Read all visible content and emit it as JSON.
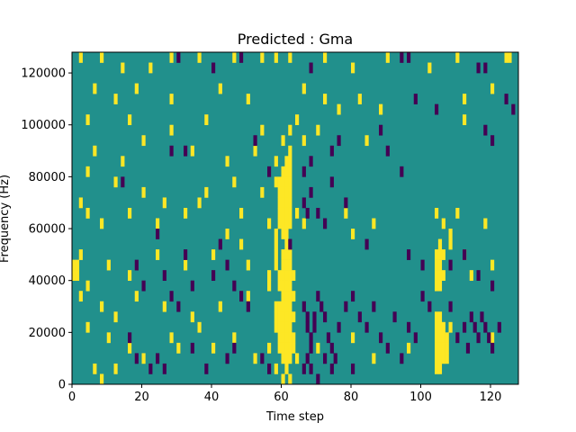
{
  "chart_data": {
    "type": "heatmap",
    "title": "Predicted : Gma",
    "xlabel": "Time step",
    "ylabel": "Frequency (Hz)",
    "xlim": [
      0,
      128
    ],
    "ylim": [
      0,
      128000
    ],
    "xticks": [
      0,
      20,
      40,
      60,
      80,
      100,
      120
    ],
    "yticks": [
      0,
      20000,
      40000,
      60000,
      80000,
      100000,
      120000
    ],
    "xtick_labels": [
      "0",
      "20",
      "40",
      "60",
      "80",
      "100",
      "120"
    ],
    "ytick_labels": [
      "0",
      "20000",
      "40000",
      "60000",
      "80000",
      "100000",
      "120000"
    ],
    "grid": false,
    "colormap": "viridis",
    "value_levels": {
      "low": "#440154",
      "mid": "#21908c",
      "high": "#fde725"
    },
    "background_level": "mid",
    "cell_size": {
      "time_step": 1,
      "frequency_hz": 4000
    },
    "high_cells": [
      [
        2,
        124000
      ],
      [
        8,
        124000
      ],
      [
        14,
        120000
      ],
      [
        22,
        120000
      ],
      [
        28,
        124000
      ],
      [
        36,
        124000
      ],
      [
        46,
        124000
      ],
      [
        54,
        124000
      ],
      [
        58,
        124000
      ],
      [
        62,
        124000
      ],
      [
        72,
        124000
      ],
      [
        80,
        120000
      ],
      [
        90,
        124000
      ],
      [
        102,
        120000
      ],
      [
        110,
        124000
      ],
      [
        124,
        124000
      ],
      [
        125,
        124000
      ],
      [
        6,
        112000
      ],
      [
        12,
        108000
      ],
      [
        18,
        112000
      ],
      [
        28,
        108000
      ],
      [
        42,
        112000
      ],
      [
        50,
        108000
      ],
      [
        66,
        112000
      ],
      [
        72,
        108000
      ],
      [
        76,
        104000
      ],
      [
        82,
        108000
      ],
      [
        88,
        104000
      ],
      [
        112,
        108000
      ],
      [
        120,
        112000
      ],
      [
        4,
        100000
      ],
      [
        16,
        100000
      ],
      [
        28,
        96000
      ],
      [
        38,
        100000
      ],
      [
        54,
        96000
      ],
      [
        60,
        92000
      ],
      [
        62,
        96000
      ],
      [
        64,
        100000
      ],
      [
        70,
        96000
      ],
      [
        84,
        92000
      ],
      [
        112,
        100000
      ],
      [
        6,
        88000
      ],
      [
        14,
        84000
      ],
      [
        20,
        92000
      ],
      [
        34,
        88000
      ],
      [
        44,
        84000
      ],
      [
        52,
        88000
      ],
      [
        58,
        84000
      ],
      [
        62,
        88000
      ],
      [
        66,
        92000
      ],
      [
        4,
        80000
      ],
      [
        12,
        76000
      ],
      [
        20,
        72000
      ],
      [
        26,
        68000
      ],
      [
        38,
        72000
      ],
      [
        46,
        76000
      ],
      [
        54,
        72000
      ],
      [
        58,
        76000
      ],
      [
        59,
        76000
      ],
      [
        59,
        72000
      ],
      [
        59,
        68000
      ],
      [
        59,
        64000
      ],
      [
        59,
        60000
      ],
      [
        60,
        80000
      ],
      [
        60,
        76000
      ],
      [
        60,
        72000
      ],
      [
        60,
        68000
      ],
      [
        60,
        64000
      ],
      [
        60,
        60000
      ],
      [
        60,
        56000
      ],
      [
        61,
        84000
      ],
      [
        61,
        80000
      ],
      [
        61,
        76000
      ],
      [
        61,
        72000
      ],
      [
        61,
        68000
      ],
      [
        61,
        64000
      ],
      [
        61,
        60000
      ],
      [
        61,
        56000
      ],
      [
        62,
        84000
      ],
      [
        62,
        80000
      ],
      [
        62,
        76000
      ],
      [
        62,
        72000
      ],
      [
        62,
        68000
      ],
      [
        62,
        64000
      ],
      [
        62,
        60000
      ],
      [
        2,
        68000
      ],
      [
        4,
        64000
      ],
      [
        8,
        60000
      ],
      [
        16,
        64000
      ],
      [
        24,
        60000
      ],
      [
        32,
        64000
      ],
      [
        36,
        68000
      ],
      [
        44,
        56000
      ],
      [
        48,
        64000
      ],
      [
        56,
        60000
      ],
      [
        58,
        56000
      ],
      [
        58,
        52000
      ],
      [
        58,
        48000
      ],
      [
        64,
        64000
      ],
      [
        66,
        60000
      ],
      [
        78,
        64000
      ],
      [
        80,
        56000
      ],
      [
        86,
        60000
      ],
      [
        104,
        64000
      ],
      [
        106,
        60000
      ],
      [
        108,
        56000
      ],
      [
        110,
        64000
      ],
      [
        118,
        60000
      ],
      [
        0,
        44000
      ],
      [
        1,
        44000
      ],
      [
        0,
        40000
      ],
      [
        1,
        40000
      ],
      [
        2,
        48000
      ],
      [
        4,
        36000
      ],
      [
        10,
        44000
      ],
      [
        16,
        40000
      ],
      [
        24,
        48000
      ],
      [
        32,
        44000
      ],
      [
        40,
        48000
      ],
      [
        48,
        52000
      ],
      [
        50,
        44000
      ],
      [
        56,
        40000
      ],
      [
        58,
        44000
      ],
      [
        59,
        40000
      ],
      [
        59,
        36000
      ],
      [
        60,
        48000
      ],
      [
        60,
        44000
      ],
      [
        60,
        40000
      ],
      [
        60,
        36000
      ],
      [
        60,
        32000
      ],
      [
        61,
        52000
      ],
      [
        61,
        48000
      ],
      [
        61,
        44000
      ],
      [
        61,
        40000
      ],
      [
        61,
        36000
      ],
      [
        61,
        32000
      ],
      [
        61,
        28000
      ],
      [
        62,
        48000
      ],
      [
        62,
        44000
      ],
      [
        62,
        40000
      ],
      [
        62,
        36000
      ],
      [
        62,
        32000
      ],
      [
        62,
        28000
      ],
      [
        62,
        24000
      ],
      [
        63,
        40000
      ],
      [
        63,
        32000
      ],
      [
        63,
        24000
      ],
      [
        104,
        48000
      ],
      [
        104,
        44000
      ],
      [
        104,
        40000
      ],
      [
        104,
        36000
      ],
      [
        105,
        52000
      ],
      [
        105,
        48000
      ],
      [
        105,
        44000
      ],
      [
        105,
        40000
      ],
      [
        105,
        36000
      ],
      [
        106,
        48000
      ],
      [
        106,
        40000
      ],
      [
        108,
        52000
      ],
      [
        112,
        48000
      ],
      [
        114,
        40000
      ],
      [
        120,
        44000
      ],
      [
        2,
        32000
      ],
      [
        8,
        28000
      ],
      [
        12,
        24000
      ],
      [
        18,
        32000
      ],
      [
        26,
        28000
      ],
      [
        34,
        24000
      ],
      [
        42,
        28000
      ],
      [
        50,
        32000
      ],
      [
        56,
        36000
      ],
      [
        58,
        28000
      ],
      [
        58,
        24000
      ],
      [
        58,
        20000
      ],
      [
        59,
        28000
      ],
      [
        59,
        24000
      ],
      [
        59,
        20000
      ],
      [
        59,
        16000
      ],
      [
        59,
        12000
      ],
      [
        60,
        28000
      ],
      [
        60,
        24000
      ],
      [
        60,
        20000
      ],
      [
        60,
        16000
      ],
      [
        60,
        12000
      ],
      [
        60,
        8000
      ],
      [
        61,
        24000
      ],
      [
        61,
        20000
      ],
      [
        61,
        16000
      ],
      [
        61,
        12000
      ],
      [
        61,
        8000
      ],
      [
        61,
        4000
      ],
      [
        62,
        20000
      ],
      [
        62,
        16000
      ],
      [
        62,
        12000
      ],
      [
        62,
        8000
      ],
      [
        63,
        16000
      ],
      [
        63,
        12000
      ],
      [
        104,
        24000
      ],
      [
        104,
        20000
      ],
      [
        104,
        16000
      ],
      [
        104,
        12000
      ],
      [
        104,
        8000
      ],
      [
        104,
        4000
      ],
      [
        105,
        24000
      ],
      [
        105,
        20000
      ],
      [
        105,
        16000
      ],
      [
        105,
        12000
      ],
      [
        105,
        8000
      ],
      [
        105,
        4000
      ],
      [
        106,
        20000
      ],
      [
        106,
        16000
      ],
      [
        106,
        12000
      ],
      [
        106,
        8000
      ],
      [
        107,
        16000
      ],
      [
        107,
        12000
      ],
      [
        107,
        8000
      ],
      [
        108,
        20000
      ],
      [
        4,
        20000
      ],
      [
        10,
        16000
      ],
      [
        16,
        12000
      ],
      [
        20,
        8000
      ],
      [
        28,
        16000
      ],
      [
        30,
        12000
      ],
      [
        36,
        20000
      ],
      [
        40,
        12000
      ],
      [
        46,
        16000
      ],
      [
        52,
        8000
      ],
      [
        56,
        12000
      ],
      [
        58,
        4000
      ],
      [
        64,
        8000
      ],
      [
        70,
        12000
      ],
      [
        80,
        16000
      ],
      [
        86,
        8000
      ],
      [
        96,
        12000
      ],
      [
        120,
        16000
      ],
      [
        6,
        4000
      ],
      [
        12,
        4000
      ],
      [
        8,
        0
      ],
      [
        60,
        0
      ],
      [
        62,
        0
      ]
    ],
    "low_cells": [
      [
        30,
        124000
      ],
      [
        40,
        120000
      ],
      [
        48,
        124000
      ],
      [
        68,
        120000
      ],
      [
        94,
        124000
      ],
      [
        96,
        124000
      ],
      [
        116,
        120000
      ],
      [
        118,
        120000
      ],
      [
        124,
        108000
      ],
      [
        126,
        104000
      ],
      [
        98,
        108000
      ],
      [
        104,
        104000
      ],
      [
        28,
        88000
      ],
      [
        32,
        88000
      ],
      [
        52,
        92000
      ],
      [
        56,
        80000
      ],
      [
        66,
        80000
      ],
      [
        68,
        84000
      ],
      [
        74,
        88000
      ],
      [
        76,
        92000
      ],
      [
        88,
        96000
      ],
      [
        90,
        88000
      ],
      [
        94,
        80000
      ],
      [
        118,
        96000
      ],
      [
        120,
        92000
      ],
      [
        14,
        76000
      ],
      [
        62,
        52000
      ],
      [
        66,
        68000
      ],
      [
        67,
        64000
      ],
      [
        68,
        72000
      ],
      [
        70,
        64000
      ],
      [
        72,
        60000
      ],
      [
        74,
        76000
      ],
      [
        78,
        68000
      ],
      [
        84,
        52000
      ],
      [
        96,
        48000
      ],
      [
        100,
        44000
      ],
      [
        108,
        44000
      ],
      [
        112,
        48000
      ],
      [
        116,
        40000
      ],
      [
        120,
        36000
      ],
      [
        18,
        44000
      ],
      [
        20,
        36000
      ],
      [
        24,
        56000
      ],
      [
        26,
        40000
      ],
      [
        28,
        32000
      ],
      [
        30,
        28000
      ],
      [
        32,
        48000
      ],
      [
        34,
        36000
      ],
      [
        40,
        40000
      ],
      [
        42,
        52000
      ],
      [
        44,
        44000
      ],
      [
        46,
        36000
      ],
      [
        48,
        32000
      ],
      [
        50,
        28000
      ],
      [
        66,
        28000
      ],
      [
        67,
        24000
      ],
      [
        67,
        20000
      ],
      [
        68,
        16000
      ],
      [
        68,
        12000
      ],
      [
        69,
        24000
      ],
      [
        69,
        20000
      ],
      [
        70,
        32000
      ],
      [
        71,
        28000
      ],
      [
        72,
        24000
      ],
      [
        73,
        16000
      ],
      [
        74,
        12000
      ],
      [
        75,
        8000
      ],
      [
        76,
        20000
      ],
      [
        78,
        28000
      ],
      [
        80,
        32000
      ],
      [
        82,
        24000
      ],
      [
        84,
        20000
      ],
      [
        86,
        28000
      ],
      [
        88,
        16000
      ],
      [
        90,
        12000
      ],
      [
        92,
        24000
      ],
      [
        94,
        8000
      ],
      [
        96,
        20000
      ],
      [
        98,
        16000
      ],
      [
        100,
        32000
      ],
      [
        102,
        28000
      ],
      [
        108,
        28000
      ],
      [
        110,
        16000
      ],
      [
        112,
        20000
      ],
      [
        113,
        12000
      ],
      [
        114,
        24000
      ],
      [
        115,
        20000
      ],
      [
        116,
        16000
      ],
      [
        117,
        24000
      ],
      [
        118,
        20000
      ],
      [
        119,
        16000
      ],
      [
        120,
        12000
      ],
      [
        122,
        20000
      ],
      [
        16,
        16000
      ],
      [
        18,
        8000
      ],
      [
        22,
        4000
      ],
      [
        24,
        8000
      ],
      [
        26,
        4000
      ],
      [
        34,
        12000
      ],
      [
        38,
        4000
      ],
      [
        44,
        8000
      ],
      [
        46,
        12000
      ],
      [
        54,
        8000
      ],
      [
        56,
        4000
      ],
      [
        66,
        4000
      ],
      [
        67,
        8000
      ],
      [
        68,
        4000
      ],
      [
        70,
        0
      ],
      [
        72,
        8000
      ],
      [
        74,
        4000
      ],
      [
        80,
        4000
      ]
    ]
  }
}
